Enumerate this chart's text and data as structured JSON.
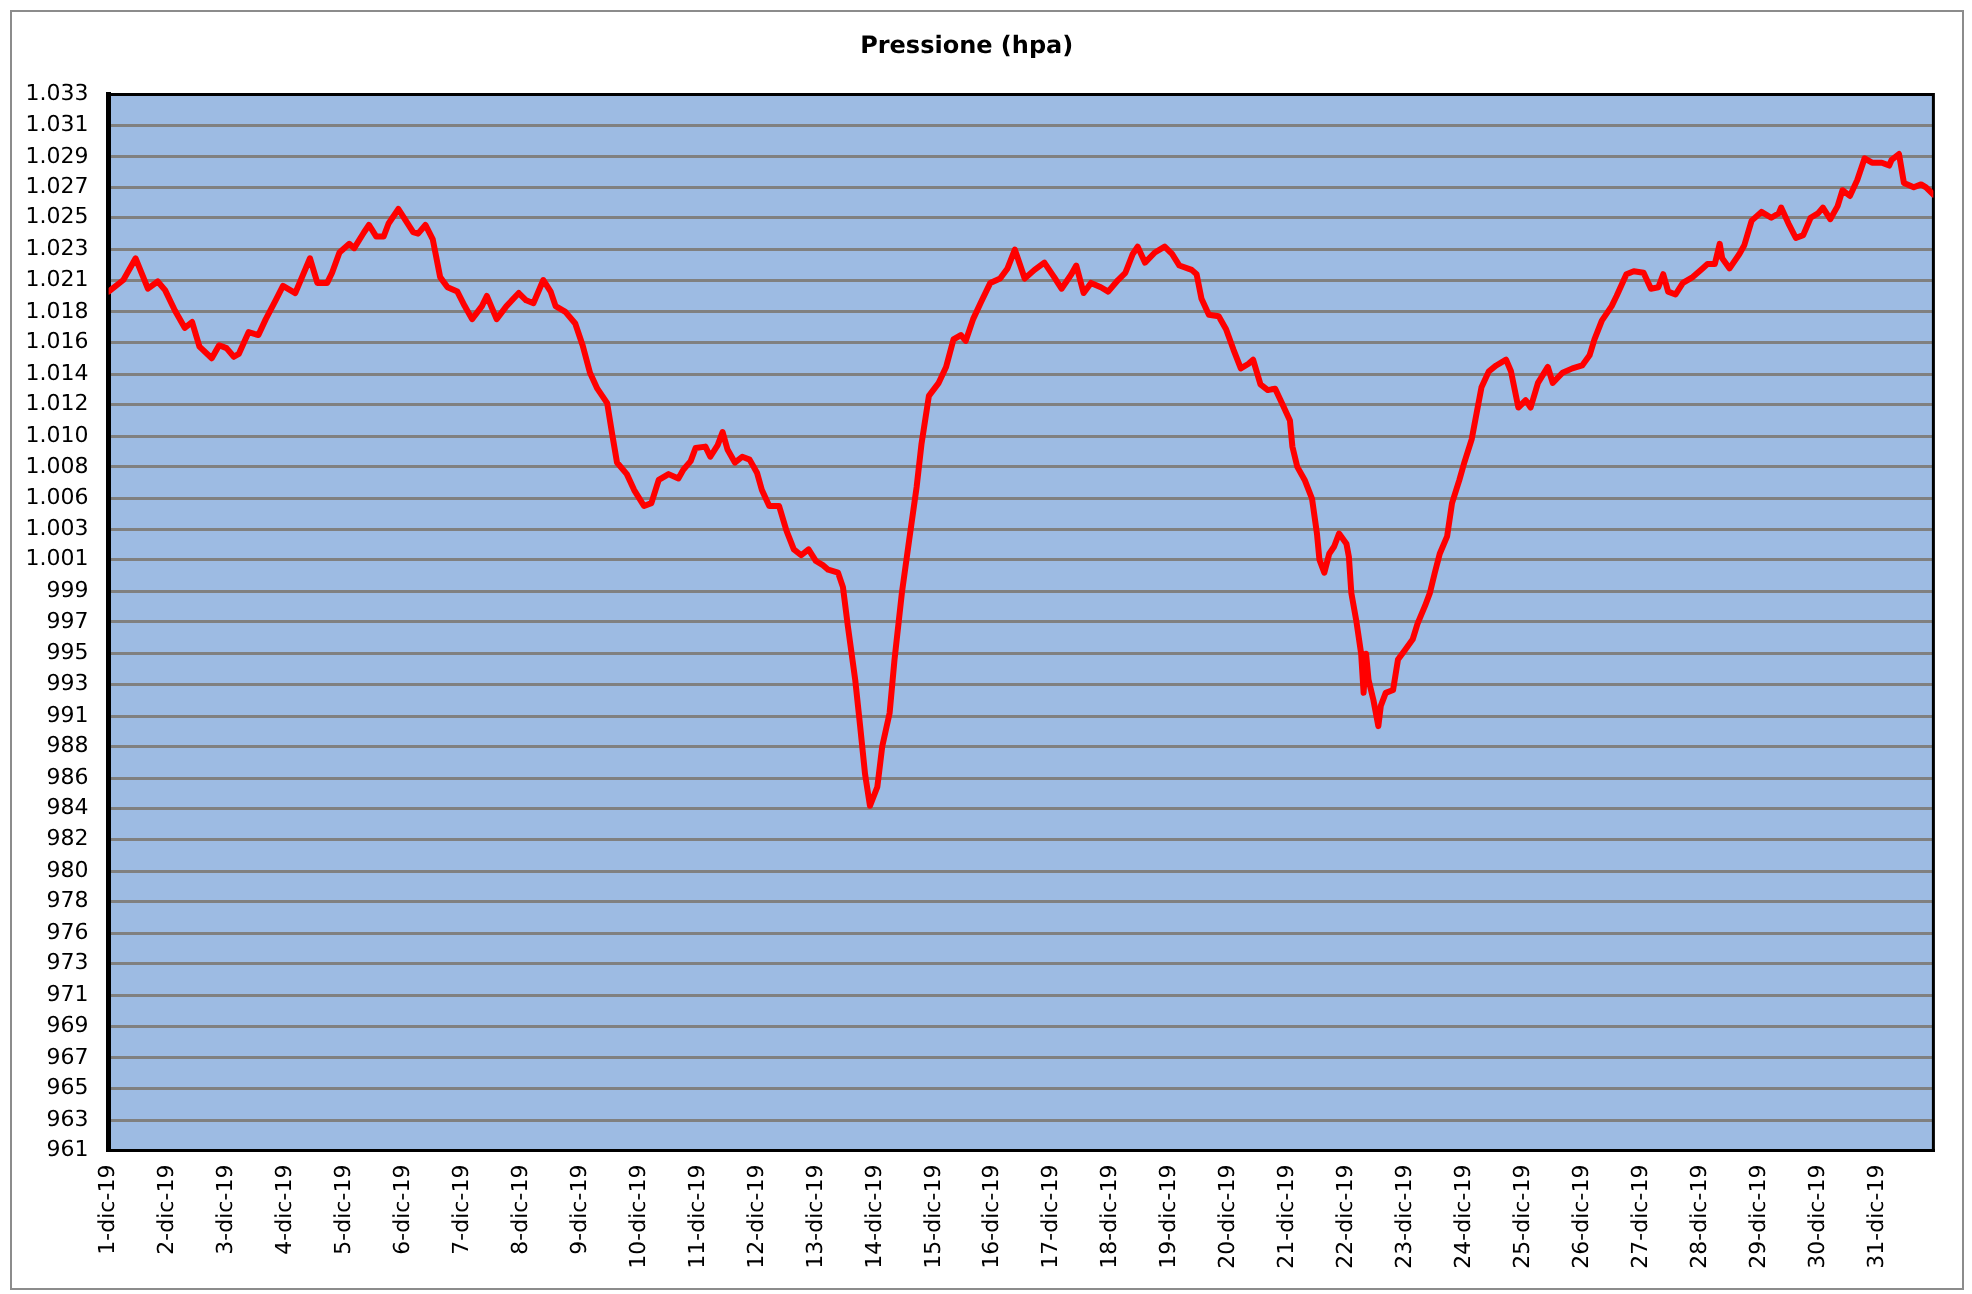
{
  "chart_data": {
    "type": "line",
    "title": "Pressione (hpa)",
    "color": "#ff0000",
    "grid": "y",
    "xlim": [
      "--12-01T00:00",
      "--12-31T23:00"
    ],
    "xticks": [
      {
        "value": "--12-01",
        "label": "1-dic-19"
      },
      {
        "value": "--12-02",
        "label": "2-dic-19"
      },
      {
        "value": "--12-03",
        "label": "3-dic-19"
      },
      {
        "value": "--12-04",
        "label": "4-dic-19"
      },
      {
        "value": "--12-05",
        "label": "5-dic-19"
      },
      {
        "value": "--12-06",
        "label": "6-dic-19"
      },
      {
        "value": "--12-07",
        "label": "7-dic-19"
      },
      {
        "value": "--12-08",
        "label": "8-dic-19"
      },
      {
        "value": "--12-09",
        "label": "9-dic-19"
      },
      {
        "value": "--12-10",
        "label": "10-dic-19"
      },
      {
        "value": "--12-11",
        "label": "11-dic-19"
      },
      {
        "value": "--12-12",
        "label": "12-dic-19"
      },
      {
        "value": "--12-13",
        "label": "13-dic-19"
      },
      {
        "value": "--12-14",
        "label": "14-dic-19"
      },
      {
        "value": "--12-15",
        "label": "15-dic-19"
      },
      {
        "value": "--12-16",
        "label": "16-dic-19"
      },
      {
        "value": "--12-17",
        "label": "17-dic-19"
      },
      {
        "value": "--12-18",
        "label": "18-dic-19"
      },
      {
        "value": "--12-19",
        "label": "19-dic-19"
      },
      {
        "value": "--12-20",
        "label": "20-dic-19"
      },
      {
        "value": "--12-21",
        "label": "21-dic-19"
      },
      {
        "value": "--12-22",
        "label": "22-dic-19"
      },
      {
        "value": "--12-23",
        "label": "23-dic-19"
      },
      {
        "value": "--12-24",
        "label": "24-dic-19"
      },
      {
        "value": "--12-25",
        "label": "25-dic-19"
      },
      {
        "value": "--12-26",
        "label": "26-dic-19"
      },
      {
        "value": "--12-27",
        "label": "27-dic-19"
      },
      {
        "value": "--12-28",
        "label": "28-dic-19"
      },
      {
        "value": "--12-29",
        "label": "29-dic-19"
      },
      {
        "value": "--12-30",
        "label": "30-dic-19"
      },
      {
        "value": "--12-31",
        "label": "31-dic-19"
      }
    ],
    "ylim": [
      960.5,
      1033.4
    ],
    "yticks": [
      {
        "value": 960.5,
        "label": "961"
      },
      {
        "value": 962.6,
        "label": "963"
      },
      {
        "value": 964.8,
        "label": "965"
      },
      {
        "value": 966.9,
        "label": "967"
      },
      {
        "value": 969.1,
        "label": "969"
      },
      {
        "value": 971.2,
        "label": "971"
      },
      {
        "value": 973.4,
        "label": "973"
      },
      {
        "value": 975.5,
        "label": "976"
      },
      {
        "value": 977.7,
        "label": "978"
      },
      {
        "value": 979.8,
        "label": "980"
      },
      {
        "value": 982.0,
        "label": "982"
      },
      {
        "value": 984.1,
        "label": "984"
      },
      {
        "value": 986.2,
        "label": "986"
      },
      {
        "value": 988.4,
        "label": "988"
      },
      {
        "value": 990.5,
        "label": "991"
      },
      {
        "value": 992.7,
        "label": "993"
      },
      {
        "value": 994.8,
        "label": "995"
      },
      {
        "value": 997.0,
        "label": "997"
      },
      {
        "value": 999.1,
        "label": "999"
      },
      {
        "value": 1001.3,
        "label": "1.001"
      },
      {
        "value": 1003.4,
        "label": "1.003"
      },
      {
        "value": 1005.5,
        "label": "1.006"
      },
      {
        "value": 1007.7,
        "label": "1.008"
      },
      {
        "value": 1009.8,
        "label": "1.010"
      },
      {
        "value": 1012.0,
        "label": "1.012"
      },
      {
        "value": 1014.1,
        "label": "1.014"
      },
      {
        "value": 1016.3,
        "label": "1.016"
      },
      {
        "value": 1018.4,
        "label": "1.018"
      },
      {
        "value": 1020.6,
        "label": "1.021"
      },
      {
        "value": 1022.7,
        "label": "1.023"
      },
      {
        "value": 1024.9,
        "label": "1.025"
      },
      {
        "value": 1027.0,
        "label": "1.027"
      },
      {
        "value": 1029.1,
        "label": "1.029"
      },
      {
        "value": 1031.3,
        "label": "1.031"
      },
      {
        "value": 1033.4,
        "label": "1.033"
      }
    ],
    "x": [
      "--12-01T00:00",
      "--12-01T06:00",
      "--12-01T11:00",
      "--12-01T16:00",
      "--12-01T20:00",
      "--12-01T23:00",
      "--12-02T03:00",
      "--12-02T07:00",
      "--12-02T10:00",
      "--12-02T13:00",
      "--12-02T18:00",
      "--12-02T21:00",
      "--12-03T00:00",
      "--12-03T03:00",
      "--12-03T05:00",
      "--12-03T09:00",
      "--12-03T13:00",
      "--12-03T16:00",
      "--12-03T20:00",
      "--12-03T23:00",
      "--12-04T04:00",
      "--12-04T10:00",
      "--12-04T13:00",
      "--12-04T17:00",
      "--12-04T19:00",
      "--12-04T22:00",
      "--12-05T02:00",
      "--12-05T04:00",
      "--12-05T08:00",
      "--12-05T10:00",
      "--12-05T13:00",
      "--12-05T16:00",
      "--12-05T18:00",
      "--12-05T22:00",
      "--12-06T01:00",
      "--12-06T04:00",
      "--12-06T06:00",
      "--12-06T09:00",
      "--12-06T12:00",
      "--12-06T15:00",
      "--12-06T18:00",
      "--12-06T22:00",
      "--12-07T01:00",
      "--12-07T04:00",
      "--12-07T08:00",
      "--12-07T10:00",
      "--12-07T14:00",
      "--12-07T18:00",
      "--12-07T23:00",
      "--12-08T02:00",
      "--12-08T05:00",
      "--12-08T09:00",
      "--12-08T12:00",
      "--12-08T14:00",
      "--12-08T18:00",
      "--12-08T22:00",
      "--12-09T01:00",
      "--12-09T04:00",
      "--12-09T07:00",
      "--12-09T11:00",
      "--12-09T13:00",
      "--12-09T15:00",
      "--12-09T19:00",
      "--12-09T22:00",
      "--12-10T02:00",
      "--12-10T05:00",
      "--12-10T08:00",
      "--12-10T12:00",
      "--12-10T16:00",
      "--12-10T18:00",
      "--12-10T21:00",
      "--12-10T23:00",
      "--12-11T03:00",
      "--12-11T05:00",
      "--12-11T08:00",
      "--12-11T10:00",
      "--12-11T12:00",
      "--12-11T15:00",
      "--12-11T18:00",
      "--12-11T21:00",
      "--12-12T00:00",
      "--12-12T02:00",
      "--12-12T05:00",
      "--12-12T09:00",
      "--12-12T12:00",
      "--12-12T15:00",
      "--12-12T18:00",
      "--12-12T21:00",
      "--12-13T00:00",
      "--12-13T03:00",
      "--12-13T05:00",
      "--12-13T09:00",
      "--12-13T11:00",
      "--12-13T13:00",
      "--12-13T16:00",
      "--12-13T18:00",
      "--12-13T20:00",
      "--12-13T22:00",
      "--12-14T01:00",
      "--12-14T03:00",
      "--12-14T06:00",
      "--12-14T08:00",
      "--12-14T11:00",
      "--12-14T14:00",
      "--12-14T17:00",
      "--12-14T19:00",
      "--12-14T22:00",
      "--12-15T02:00",
      "--12-15T05:00",
      "--12-15T08:00",
      "--12-15T11:00",
      "--12-15T13:00",
      "--12-15T16:00",
      "--12-15T19:00",
      "--12-15T23:00",
      "--12-16T03:00",
      "--12-16T06:00",
      "--12-16T09:00",
      "--12-16T13:00",
      "--12-16T17:00",
      "--12-16T21:00",
      "--12-17T01:00",
      "--12-17T04:00",
      "--12-17T08:00",
      "--12-17T10:00",
      "--12-17T13:00",
      "--12-17T16:00",
      "--12-17T20:00",
      "--12-17T23:00",
      "--12-18T03:00",
      "--12-18T06:00",
      "--12-18T09:00",
      "--12-18T11:00",
      "--12-18T14:00",
      "--12-18T18:00",
      "--12-18T22:00",
      "--12-19T01:00",
      "--12-19T04:00",
      "--12-19T09:00",
      "--12-19T11:00",
      "--12-19T13:00",
      "--12-19T16:00",
      "--12-19T20:00",
      "--12-19T23:00",
      "--12-20T02:00",
      "--12-20T05:00",
      "--12-20T08:00",
      "--12-20T10:00",
      "--12-20T13:00",
      "--12-20T16:00",
      "--12-20T19:00",
      "--12-20T22:00",
      "--12-21T01:00",
      "--12-21T02:00",
      "--12-21T04:00",
      "--12-21T07:00",
      "--12-21T10:00",
      "--12-21T12:00",
      "--12-21T13:00",
      "--12-21T15:00",
      "--12-21T17:00",
      "--12-21T19:00",
      "--12-21T21:00",
      "--12-22T00:00",
      "--12-22T01:00",
      "--12-22T02:00",
      "--12-22T04:00",
      "--12-22T06:00",
      "--12-22T07:00",
      "--12-22T08:00",
      "--12-22T09:00",
      "--12-22T11:00",
      "--12-22T13:00",
      "--12-22T14:00",
      "--12-22T16:00",
      "--12-22T19:00",
      "--12-22T21:00",
      "--12-23T00:00",
      "--12-23T03:00",
      "--12-23T05:00",
      "--12-23T08:00",
      "--12-23T10:00",
      "--12-23T12:00",
      "--12-23T14:00",
      "--12-23T17:00",
      "--12-23T19:00",
      "--12-23T22:00",
      "--12-24T00:00",
      "--12-24T03:00",
      "--12-24T05:00",
      "--12-24T07:00",
      "--12-24T10:00",
      "--12-24T13:00",
      "--12-24T17:00",
      "--12-24T19:00",
      "--12-24T22:00",
      "--12-25T01:00",
      "--12-25T03:00",
      "--12-25T06:00",
      "--12-25T10:00",
      "--12-25T12:00",
      "--12-25T16:00",
      "--12-25T20:00",
      "--12-26T00:00",
      "--12-26T03:00",
      "--12-26T05:00",
      "--12-26T08:00",
      "--12-26T12:00",
      "--12-26T14:00",
      "--12-26T18:00",
      "--12-26T21:00",
      "--12-27T01:00",
      "--12-27T04:00",
      "--12-27T07:00",
      "--12-27T09:00",
      "--12-27T11:00",
      "--12-27T14:00",
      "--12-27T17:00",
      "--12-27T21:00",
      "--12-28T01:00",
      "--12-28T03:00",
      "--12-28T06:00",
      "--12-28T08:00",
      "--12-28T09:00",
      "--12-28T12:00",
      "--12-28T16:00",
      "--12-28T18:00",
      "--12-28T21:00",
      "--12-29T01:00",
      "--12-29T05:00",
      "--12-29T08:00",
      "--12-29T09:00",
      "--12-29T12:00",
      "--12-29T15:00",
      "--12-29T18:00",
      "--12-29T21:00",
      "--12-30T00:00",
      "--12-30T02:00",
      "--12-30T05:00",
      "--12-30T08:00",
      "--12-30T10:00",
      "--12-30T13:00",
      "--12-30T16:00",
      "--12-30T19:00",
      "--12-30T22:00",
      "--12-31T02:00",
      "--12-31T05:00",
      "--12-31T06:00",
      "--12-31T09:00",
      "--12-31T11:00",
      "--12-31T15:00",
      "--12-31T18:00",
      "--12-31T20:00",
      "--12-31T23:00"
    ],
    "values": [
      1019.8,
      1020.6,
      1022.1,
      1020.0,
      1020.5,
      1019.9,
      1018.5,
      1017.3,
      1017.7,
      1016.0,
      1015.2,
      1016.1,
      1015.9,
      1015.3,
      1015.5,
      1017.0,
      1016.8,
      1017.9,
      1019.2,
      1020.2,
      1019.7,
      1022.1,
      1020.4,
      1020.4,
      1021.1,
      1022.5,
      1023.1,
      1022.8,
      1023.9,
      1024.4,
      1023.6,
      1023.6,
      1024.5,
      1025.5,
      1024.7,
      1023.9,
      1023.8,
      1024.4,
      1023.4,
      1020.8,
      1020.1,
      1019.8,
      1018.8,
      1017.9,
      1018.8,
      1019.5,
      1017.9,
      1018.8,
      1019.7,
      1019.2,
      1019.0,
      1020.6,
      1019.8,
      1018.8,
      1018.4,
      1017.6,
      1016.1,
      1014.2,
      1013.1,
      1012.1,
      1010.0,
      1008.0,
      1007.2,
      1006.1,
      1005.0,
      1005.2,
      1006.8,
      1007.2,
      1006.9,
      1007.5,
      1008.1,
      1009.0,
      1009.1,
      1008.4,
      1009.2,
      1010.1,
      1008.9,
      1008.0,
      1008.4,
      1008.2,
      1007.3,
      1006.1,
      1005.0,
      1005.0,
      1003.3,
      1002.0,
      1001.6,
      1002.0,
      1001.2,
      1000.9,
      1000.6,
      1000.4,
      999.4,
      996.7,
      993.0,
      989.8,
      986.5,
      984.3,
      985.6,
      988.4,
      990.7,
      994.4,
      999.0,
      1002.7,
      1006.3,
      1009.3,
      1012.6,
      1013.5,
      1014.6,
      1016.5,
      1016.8,
      1016.4,
      1017.9,
      1019.0,
      1020.4,
      1020.7,
      1021.4,
      1022.7,
      1020.7,
      1021.3,
      1021.8,
      1020.8,
      1020.0,
      1021.0,
      1021.6,
      1019.7,
      1020.4,
      1020.1,
      1019.8,
      1020.6,
      1021.1,
      1022.4,
      1022.9,
      1021.8,
      1022.5,
      1022.9,
      1022.4,
      1021.6,
      1021.3,
      1021.0,
      1019.3,
      1018.2,
      1018.1,
      1017.2,
      1015.8,
      1014.5,
      1014.8,
      1015.1,
      1013.4,
      1013.0,
      1013.1,
      1012.0,
      1010.9,
      1009.1,
      1007.7,
      1006.8,
      1005.5,
      1003.1,
      1001.3,
      1000.4,
      1001.7,
      1002.2,
      1003.1,
      1002.4,
      1001.5,
      999.0,
      997.1,
      994.8,
      992.1,
      994.8,
      993.0,
      991.6,
      989.8,
      991.2,
      992.1,
      992.3,
      994.4,
      995.1,
      995.8,
      996.9,
      998.1,
      999.0,
      1000.4,
      1001.7,
      1002.9,
      1005.2,
      1006.8,
      1008.0,
      1009.6,
      1011.4,
      1013.2,
      1014.3,
      1014.7,
      1015.1,
      1014.3,
      1011.8,
      1012.3,
      1011.8,
      1013.5,
      1014.6,
      1013.5,
      1014.2,
      1014.5,
      1014.7,
      1015.4,
      1016.5,
      1017.8,
      1018.8,
      1019.5,
      1021.0,
      1021.2,
      1021.1,
      1020.0,
      1020.1,
      1021.0,
      1019.8,
      1019.6,
      1020.4,
      1020.8,
      1021.4,
      1021.7,
      1021.7,
      1023.1,
      1022.1,
      1021.4,
      1022.4,
      1023.0,
      1024.7,
      1025.3,
      1024.9,
      1025.2,
      1025.6,
      1024.5,
      1023.5,
      1023.7,
      1024.9,
      1025.2,
      1025.6,
      1024.8,
      1025.7,
      1026.8,
      1026.4,
      1027.5,
      1029.0,
      1028.7,
      1028.7,
      1028.5,
      1028.9,
      1029.3,
      1027.3,
      1027.0,
      1027.2,
      1027.0,
      1026.5
    ]
  }
}
